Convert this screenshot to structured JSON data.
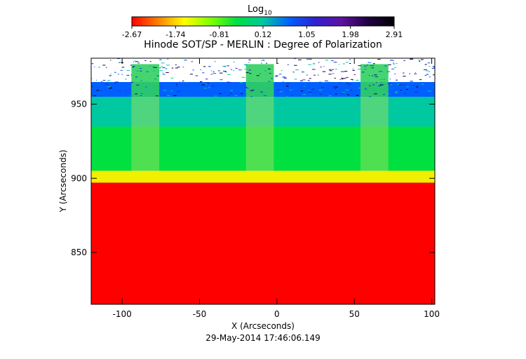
{
  "chart_data": {
    "type": "heatmap",
    "title": "Hinode SOT/SP - MERLIN : Degree of Polarization",
    "xlabel": "X (Arcseconds)",
    "ylabel": "Y (Arcseconds)",
    "timestamp": "29-May-2014 17:46:06.149",
    "xlim": [
      -120,
      102
    ],
    "ylim": [
      815,
      981
    ],
    "xticks": [
      -100,
      -50,
      0,
      50,
      100
    ],
    "yticks": [
      850,
      900,
      950
    ],
    "colorbar": {
      "label": "Log",
      "label_subscript": "10",
      "range": [
        -2.67,
        2.91
      ],
      "ticks": [
        "-2.67",
        "-1.74",
        "-0.81",
        "0.12",
        "1.05",
        "1.98",
        "2.91"
      ],
      "colormap": [
        "#ff0000",
        "#ff8000",
        "#ffff00",
        "#80ff00",
        "#00e040",
        "#00c8a0",
        "#0060ff",
        "#3020d0",
        "#6010a0",
        "#200040",
        "#000000"
      ]
    },
    "regions": [
      {
        "y_from": 815,
        "y_to": 897,
        "log10_value": -2.67,
        "color": "#ff0000"
      },
      {
        "y_from": 897,
        "y_to": 905,
        "log10_value": -1.6,
        "color": "#f0f000"
      },
      {
        "y_from": 905,
        "y_to": 935,
        "log10_value": -0.5,
        "color": "#00e040"
      },
      {
        "y_from": 935,
        "y_to": 955,
        "log10_value": 0.9,
        "color": "#00c8a0"
      },
      {
        "y_from": 955,
        "y_to": 965,
        "log10_value": 1.3,
        "color": "#0060ff"
      },
      {
        "y_from": 965,
        "y_to": 981,
        "log10_value": 2.5,
        "color": "#ffffff"
      }
    ],
    "scan_strips": [
      {
        "x_from": -94,
        "x_to": -76
      },
      {
        "x_from": -20,
        "x_to": -2
      },
      {
        "x_from": 54,
        "x_to": 72
      }
    ]
  }
}
